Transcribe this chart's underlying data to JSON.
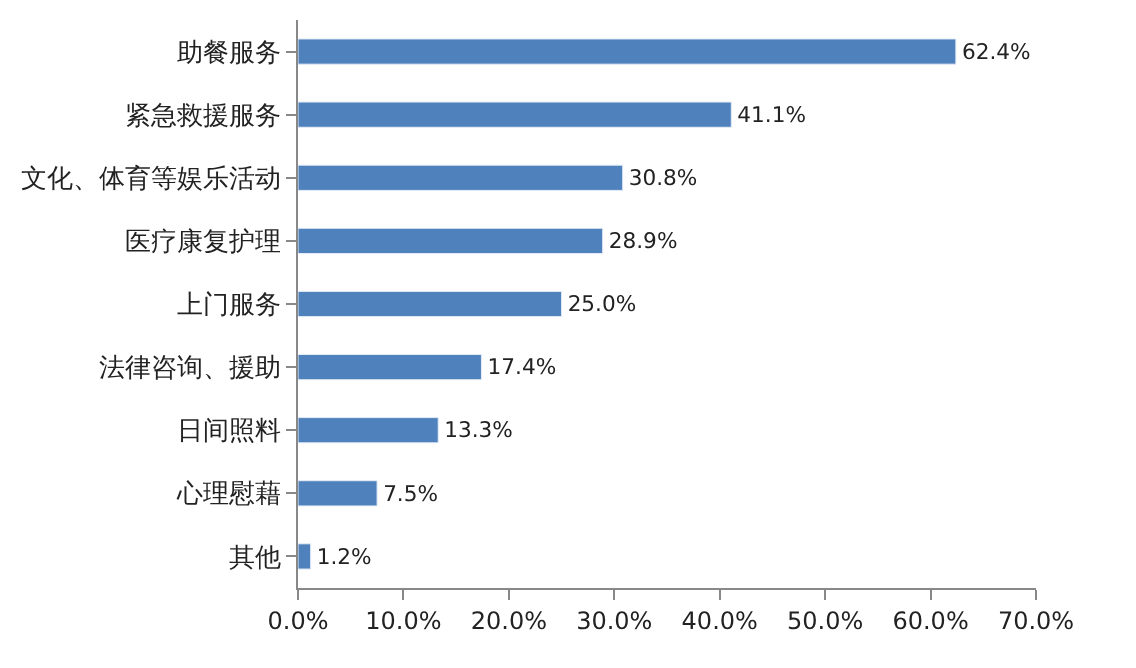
{
  "chart_data": {
    "type": "bar",
    "orientation": "horizontal",
    "categories": [
      "助餐服务",
      "紧急救援服务",
      "文化、体育等娱乐活动",
      "医疗康复护理",
      "上门服务",
      "法律咨询、援助",
      "日间照料",
      "心理慰藉",
      "其他"
    ],
    "values": [
      62.4,
      41.1,
      30.8,
      28.9,
      25.0,
      17.4,
      13.3,
      7.5,
      1.2
    ],
    "value_labels": [
      "62.4%",
      "41.1%",
      "30.8%",
      "28.9%",
      "25.0%",
      "17.4%",
      "13.3%",
      "7.5%",
      "1.2%"
    ],
    "color": "#4f81bd",
    "xlim": [
      0,
      70
    ],
    "xticks": [
      {
        "value": 0,
        "label": "0.0%"
      },
      {
        "value": 10,
        "label": "10.0%"
      },
      {
        "value": 20,
        "label": "20.0%"
      },
      {
        "value": 30,
        "label": "30.0%"
      },
      {
        "value": 40,
        "label": "40.0%"
      },
      {
        "value": 50,
        "label": "50.0%"
      },
      {
        "value": 60,
        "label": "60.0%"
      },
      {
        "value": 70,
        "label": "70.0%"
      }
    ],
    "legend": false
  }
}
